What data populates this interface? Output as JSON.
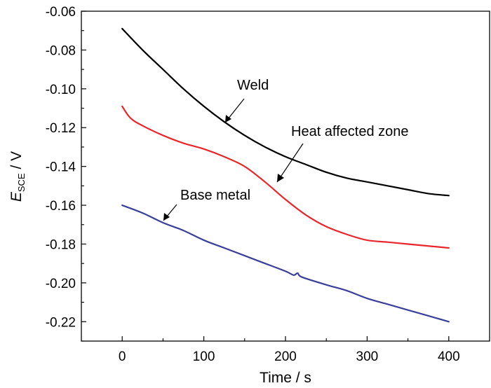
{
  "chart_data": {
    "type": "line",
    "title": "",
    "xlabel": "Time / s",
    "ylabel": {
      "symbol": "E",
      "subscript": "SCE",
      "unit": " / V"
    },
    "xlim": [
      -50,
      450
    ],
    "ylim": [
      -0.23,
      -0.06
    ],
    "xticks": [
      0,
      100,
      200,
      300,
      400
    ],
    "xtick_labels": [
      "0",
      "100",
      "200",
      "300",
      "400"
    ],
    "yticks": [
      -0.22,
      -0.2,
      -0.18,
      -0.16,
      -0.14,
      -0.12,
      -0.1,
      -0.08,
      -0.06
    ],
    "ytick_labels": [
      "-0.22",
      "-0.20",
      "-0.18",
      "-0.16",
      "-0.14",
      "-0.12",
      "-0.10",
      "-0.08",
      "-0.06"
    ],
    "grid": false,
    "legend": "none",
    "series": [
      {
        "name": "Weld",
        "color": "#000000",
        "x": [
          0,
          25,
          50,
          75,
          100,
          125,
          150,
          175,
          200,
          225,
          250,
          275,
          300,
          325,
          350,
          375,
          400
        ],
        "y": [
          -0.069,
          -0.08,
          -0.09,
          -0.1,
          -0.109,
          -0.117,
          -0.124,
          -0.13,
          -0.135,
          -0.139,
          -0.143,
          -0.146,
          -0.148,
          -0.15,
          -0.152,
          -0.154,
          -0.155
        ]
      },
      {
        "name": "Heat affected zone",
        "color": "#e8262b",
        "x": [
          0,
          10,
          25,
          50,
          75,
          100,
          125,
          150,
          175,
          200,
          225,
          250,
          275,
          300,
          325,
          350,
          375,
          400
        ],
        "y": [
          -0.109,
          -0.115,
          -0.119,
          -0.124,
          -0.128,
          -0.131,
          -0.135,
          -0.14,
          -0.148,
          -0.157,
          -0.165,
          -0.171,
          -0.175,
          -0.178,
          -0.179,
          -0.18,
          -0.181,
          -0.182
        ]
      },
      {
        "name": "Base metal",
        "color": "#3a3f9a",
        "x": [
          0,
          25,
          50,
          75,
          100,
          125,
          150,
          175,
          200,
          210,
          215,
          220,
          250,
          275,
          300,
          325,
          350,
          375,
          400
        ],
        "y": [
          -0.16,
          -0.164,
          -0.169,
          -0.173,
          -0.178,
          -0.182,
          -0.186,
          -0.19,
          -0.194,
          -0.196,
          -0.195,
          -0.197,
          -0.201,
          -0.204,
          -0.208,
          -0.211,
          -0.214,
          -0.217,
          -0.22
        ]
      }
    ],
    "annotations": [
      {
        "text": "Weld",
        "series": 0,
        "target": [
          133,
          -0.1205
        ]
      },
      {
        "text": "Heat affected zone",
        "series": 1,
        "target": [
          189,
          -0.151
        ]
      },
      {
        "text": "Base metal",
        "series": 2,
        "target": [
          50,
          -0.1695
        ]
      }
    ]
  }
}
